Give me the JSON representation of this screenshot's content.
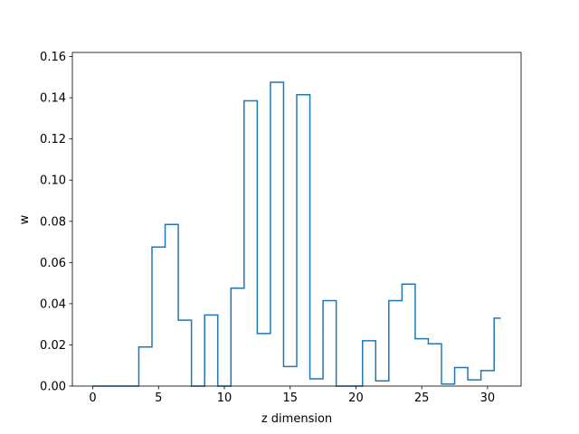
{
  "chart_data": {
    "type": "line",
    "drawstyle": "steps-mid",
    "xlabel": "z dimension",
    "ylabel": "w",
    "xlim": [
      -1.55,
      32.55
    ],
    "ylim": [
      0,
      0.162
    ],
    "x_ticks": [
      0,
      5,
      10,
      15,
      20,
      25,
      30
    ],
    "x_tick_labels": [
      "0",
      "5",
      "10",
      "15",
      "20",
      "25",
      "30"
    ],
    "y_ticks": [
      0.0,
      0.02,
      0.04,
      0.06,
      0.08,
      0.1,
      0.12,
      0.14,
      0.16
    ],
    "y_tick_labels": [
      "0.00",
      "0.02",
      "0.04",
      "0.06",
      "0.08",
      "0.10",
      "0.12",
      "0.14",
      "0.16"
    ],
    "grid": false,
    "line_color": "#1f77b4",
    "series": [
      {
        "x": [
          0,
          1,
          2,
          3,
          4,
          5,
          6,
          7,
          8,
          9,
          10,
          11,
          12,
          13,
          14,
          15,
          16,
          17,
          18,
          19,
          20,
          21,
          22,
          23,
          24,
          25,
          26,
          27,
          28,
          29,
          30,
          31
        ],
        "values": [
          0.0,
          0.0,
          0.0,
          0.0,
          0.019,
          0.0675,
          0.0785,
          0.032,
          0.0,
          0.0345,
          0.0,
          0.0475,
          0.1385,
          0.0255,
          0.1475,
          0.0095,
          0.1415,
          0.0035,
          0.0415,
          0.0,
          0.0,
          0.022,
          0.0025,
          0.0415,
          0.0495,
          0.023,
          0.0205,
          0.001,
          0.009,
          0.003,
          0.0075,
          0.033
        ]
      }
    ]
  }
}
